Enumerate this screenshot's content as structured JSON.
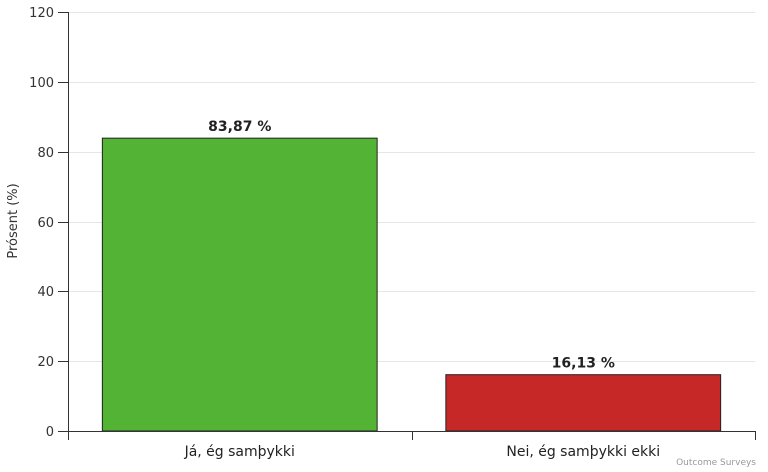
{
  "chart_data": {
    "type": "bar",
    "categories": [
      "Já, ég samþykki",
      "Nei, ég samþykki ekki"
    ],
    "values": [
      83.87,
      16.13
    ],
    "data_labels": [
      "83,87 %",
      "16,13 %"
    ],
    "colors": [
      "#52b335",
      "#c62828"
    ],
    "ylabel": "Prósent (%)",
    "ylim": [
      0,
      120
    ],
    "yticks": [
      "0",
      "20",
      "40",
      "60",
      "80",
      "100",
      "120"
    ],
    "ytick_values": [
      0,
      20,
      40,
      60,
      80,
      100,
      120
    ],
    "grid": true,
    "legend": "none"
  },
  "credits": "Outcome Surveys"
}
